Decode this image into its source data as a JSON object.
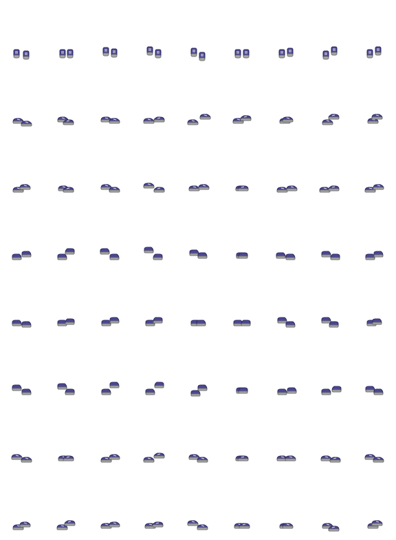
{
  "sprite_sheet": {
    "subject": "shoe",
    "columns": 9,
    "rows": 8,
    "colors": {
      "upper": "#4b4790",
      "upper_dark": "#2e2b63",
      "upper_light": "#6e6ab4",
      "sole": "#a8a8a8",
      "sole_dark": "#707070",
      "lace": "#e8e8e8",
      "background": "#ffffff"
    },
    "rows_data": [
      {
        "direction": "south",
        "pose": "walk",
        "frames": 9
      },
      {
        "direction": "south-west",
        "pose": "walk",
        "frames": 9
      },
      {
        "direction": "west",
        "pose": "walk",
        "frames": 9
      },
      {
        "direction": "north-west",
        "pose": "walk",
        "frames": 9
      },
      {
        "direction": "north",
        "pose": "walk",
        "frames": 9
      },
      {
        "direction": "north-east",
        "pose": "walk",
        "frames": 9
      },
      {
        "direction": "east",
        "pose": "walk",
        "frames": 9
      },
      {
        "direction": "south-east",
        "pose": "walk",
        "frames": 9
      }
    ]
  }
}
